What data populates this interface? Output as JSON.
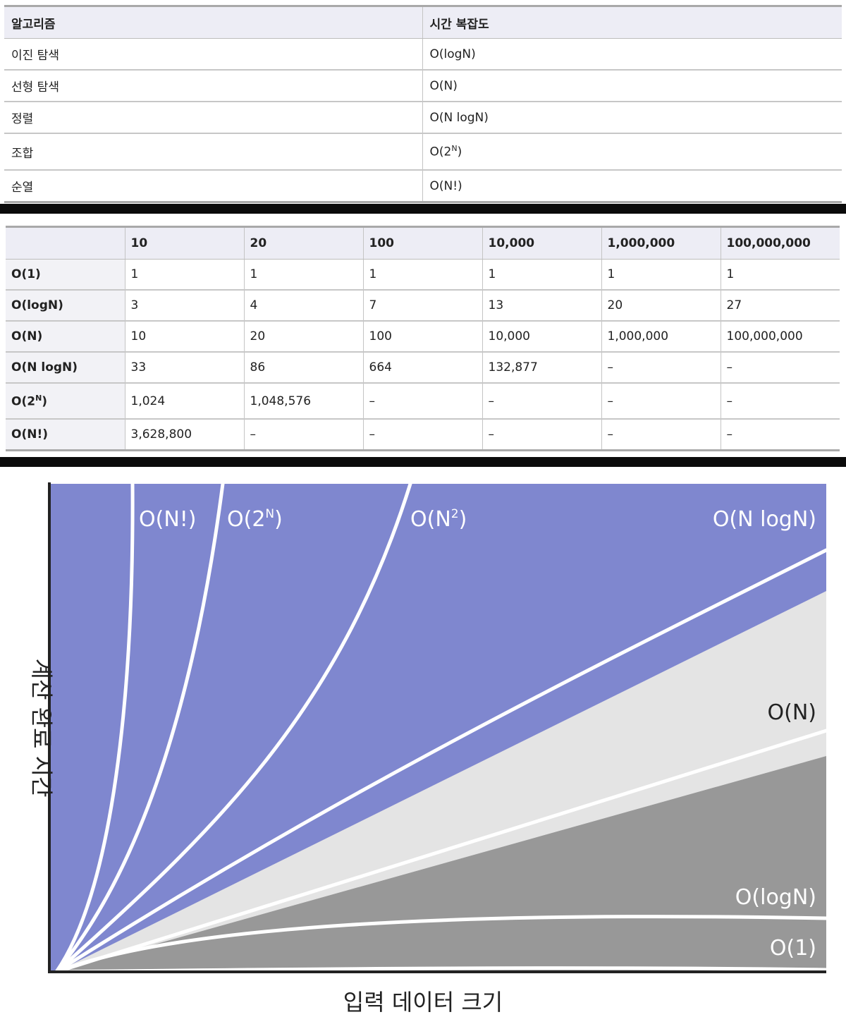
{
  "table1": {
    "headers": [
      "알고리즘",
      "시간 복잡도"
    ],
    "rows": [
      {
        "algo": "이진 탐색",
        "complexity": "O(logN)"
      },
      {
        "algo": "선형 탐색",
        "complexity": "O(N)"
      },
      {
        "algo": "정렬",
        "complexity": "O(N logN)"
      },
      {
        "algo": "조합",
        "complexity_base": "O(2",
        "complexity_sup": "N",
        "complexity_close": ")"
      },
      {
        "algo": "순열",
        "complexity": "O(N!)"
      }
    ]
  },
  "table2": {
    "headers": [
      "",
      "10",
      "20",
      "100",
      "10,000",
      "1,000,000",
      "100,000,000"
    ],
    "rows": [
      {
        "label": "O(1)",
        "values": [
          "1",
          "1",
          "1",
          "1",
          "1",
          "1"
        ]
      },
      {
        "label": "O(logN)",
        "values": [
          "3",
          "4",
          "7",
          "13",
          "20",
          "27"
        ]
      },
      {
        "label": "O(N)",
        "values": [
          "10",
          "20",
          "100",
          "10,000",
          "1,000,000",
          "100,000,000"
        ]
      },
      {
        "label": "O(N logN)",
        "values": [
          "33",
          "86",
          "664",
          "132,877",
          "–",
          "–"
        ]
      },
      {
        "label_base": "O(2",
        "label_sup": "N",
        "label_close": ")",
        "values": [
          "1,024",
          "1,048,576",
          "–",
          "–",
          "–",
          "–"
        ]
      },
      {
        "label": "O(N!)",
        "values": [
          "3,628,800",
          "–",
          "–",
          "–",
          "–",
          "–"
        ]
      }
    ]
  },
  "chart_data": {
    "type": "area",
    "title": "",
    "xlabel": "입력 데이터 크기",
    "ylabel": "계산 완료 시간",
    "curve_labels": {
      "fact": "O(N!)",
      "exp_base": "O(2",
      "exp_sup": "N",
      "exp_close": ")",
      "quad_base": "O(N",
      "quad_sup": "2",
      "quad_close": ")",
      "nlogn": "O(N logN)",
      "linear": "O(N)",
      "log": "O(logN)",
      "const": "O(1)"
    },
    "colors": {
      "fast_region": "#808080",
      "medium_region": "#e4e4e4",
      "slow_region": "#7f87cf",
      "curve_line": "#ffffff",
      "axis": "#222222"
    }
  }
}
